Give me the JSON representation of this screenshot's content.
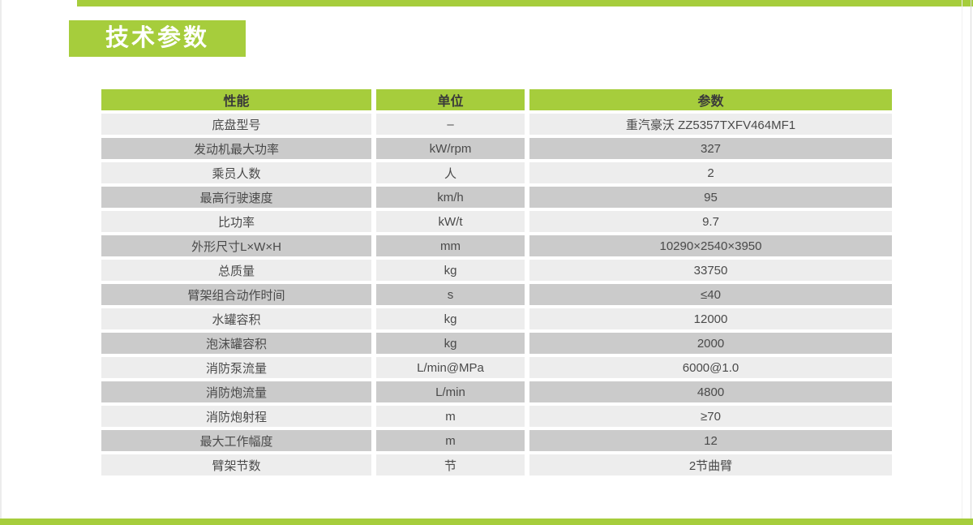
{
  "page": {
    "title": "技术参数"
  },
  "colors": {
    "accent": "#a6cd3c",
    "header_text": "#3a3a3a",
    "row_light": "#ededed",
    "row_dark": "#cbcbcb",
    "cell_text": "#4a4a4a",
    "badge_text": "#ffffff"
  },
  "table": {
    "headers": [
      "性能",
      "单位",
      "参数"
    ],
    "rows": [
      {
        "name": "底盘型号",
        "unit": "–",
        "value": "重汽豪沃 ZZ5357TXFV464MF1"
      },
      {
        "name": "发动机最大功率",
        "unit": "kW/rpm",
        "value": "327"
      },
      {
        "name": "乘员人数",
        "unit": "人",
        "value": "2"
      },
      {
        "name": "最高行驶速度",
        "unit": "km/h",
        "value": "95"
      },
      {
        "name": "比功率",
        "unit": "kW/t",
        "value": "9.7"
      },
      {
        "name": "外形尺寸L×W×H",
        "unit": "mm",
        "value": "10290×2540×3950"
      },
      {
        "name": "总质量",
        "unit": "kg",
        "value": "33750"
      },
      {
        "name": "臂架组合动作时间",
        "unit": "s",
        "value": "≤40"
      },
      {
        "name": "水罐容积",
        "unit": "kg",
        "value": "12000"
      },
      {
        "name": "泡沫罐容积",
        "unit": "kg",
        "value": "2000"
      },
      {
        "name": "消防泵流量",
        "unit": "L/min@MPa",
        "value": "6000@1.0"
      },
      {
        "name": "消防炮流量",
        "unit": "L/min",
        "value": "4800"
      },
      {
        "name": "消防炮射程",
        "unit": "m",
        "value": "≥70"
      },
      {
        "name": "最大工作幅度",
        "unit": "m",
        "value": "12"
      },
      {
        "name": "臂架节数",
        "unit": "节",
        "value": "2节曲臂"
      }
    ]
  }
}
